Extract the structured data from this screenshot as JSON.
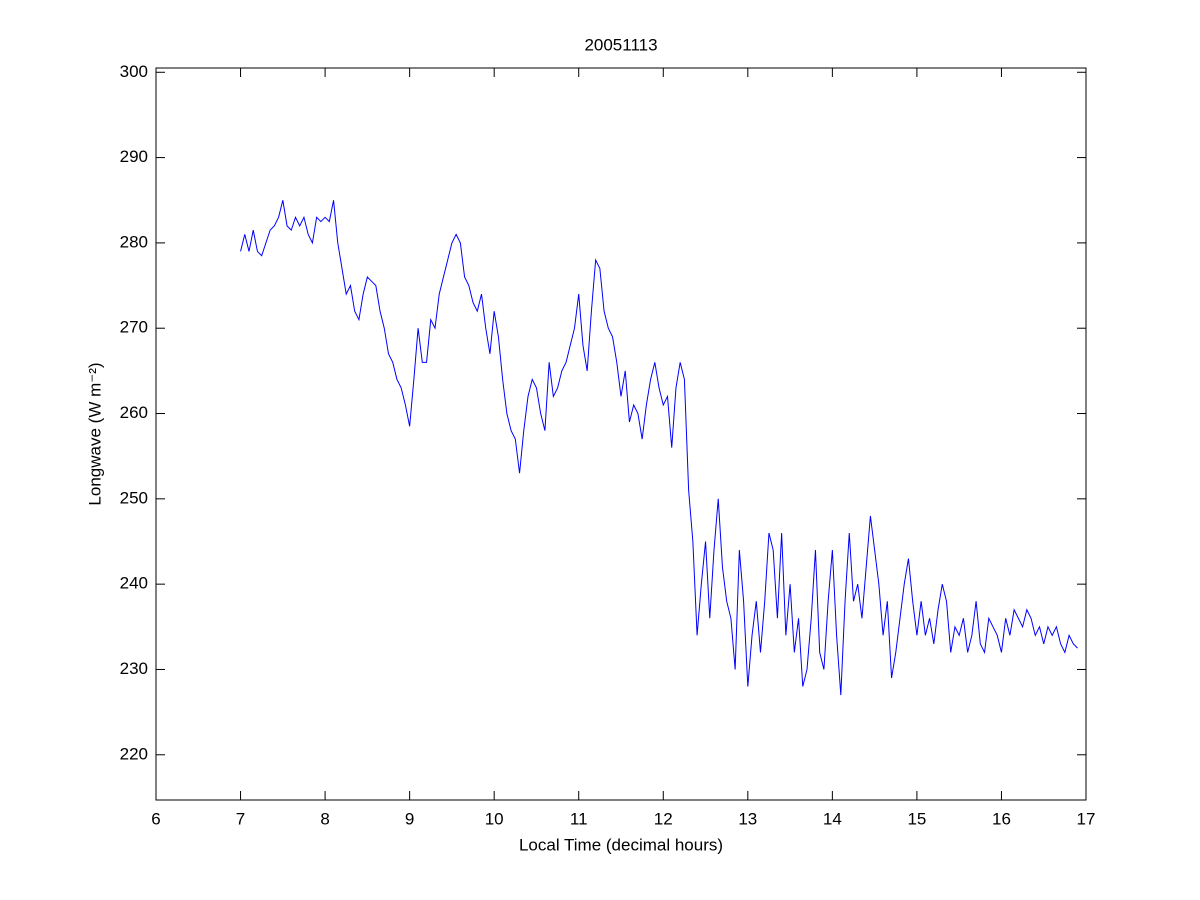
{
  "chart_data": {
    "type": "line",
    "title": "20051113",
    "xlabel": "Local Time (decimal hours)",
    "ylabel": "Longwave (W m⁻²)",
    "x": [
      7.0,
      7.05,
      7.1,
      7.15,
      7.2,
      7.25,
      7.3,
      7.35,
      7.4,
      7.45,
      7.5,
      7.55,
      7.6,
      7.65,
      7.7,
      7.75,
      7.8,
      7.85,
      7.9,
      7.95,
      8.0,
      8.05,
      8.1,
      8.15,
      8.2,
      8.25,
      8.3,
      8.35,
      8.4,
      8.45,
      8.5,
      8.55,
      8.6,
      8.65,
      8.7,
      8.75,
      8.8,
      8.85,
      8.9,
      8.95,
      9.0,
      9.05,
      9.1,
      9.15,
      9.2,
      9.25,
      9.3,
      9.35,
      9.4,
      9.45,
      9.5,
      9.55,
      9.6,
      9.65,
      9.7,
      9.75,
      9.8,
      9.85,
      9.9,
      9.95,
      10.0,
      10.05,
      10.1,
      10.15,
      10.2,
      10.25,
      10.3,
      10.35,
      10.4,
      10.45,
      10.5,
      10.55,
      10.6,
      10.65,
      10.7,
      10.75,
      10.8,
      10.85,
      10.9,
      10.95,
      11.0,
      11.05,
      11.1,
      11.15,
      11.2,
      11.25,
      11.3,
      11.35,
      11.4,
      11.45,
      11.5,
      11.55,
      11.6,
      11.65,
      11.7,
      11.75,
      11.8,
      11.85,
      11.9,
      11.95,
      12.0,
      12.05,
      12.1,
      12.15,
      12.2,
      12.25,
      12.3,
      12.35,
      12.4,
      12.45,
      12.5,
      12.55,
      12.6,
      12.65,
      12.7,
      12.75,
      12.8,
      12.85,
      12.9,
      12.95,
      13.0,
      13.05,
      13.1,
      13.15,
      13.2,
      13.25,
      13.3,
      13.35,
      13.4,
      13.45,
      13.5,
      13.55,
      13.6,
      13.65,
      13.7,
      13.75,
      13.8,
      13.85,
      13.9,
      13.95,
      14.0,
      14.05,
      14.1,
      14.15,
      14.2,
      14.25,
      14.3,
      14.35,
      14.4,
      14.45,
      14.5,
      14.55,
      14.6,
      14.65,
      14.7,
      14.75,
      14.8,
      14.85,
      14.9,
      14.95,
      15.0,
      15.05,
      15.1,
      15.15,
      15.2,
      15.25,
      15.3,
      15.35,
      15.4,
      15.45,
      15.5,
      15.55,
      15.6,
      15.65,
      15.7,
      15.75,
      15.8,
      15.85,
      15.9,
      15.95,
      16.0,
      16.05,
      16.1,
      16.15,
      16.2,
      16.25,
      16.3,
      16.35,
      16.4,
      16.45,
      16.5,
      16.55,
      16.6,
      16.65,
      16.7,
      16.75,
      16.8,
      16.85,
      16.9
    ],
    "series": [
      {
        "color": "#0000ff",
        "values": [
          279,
          281,
          279,
          281.5,
          279,
          278.5,
          280,
          281.5,
          282,
          283,
          285,
          282,
          281.5,
          283,
          282,
          283,
          281,
          280,
          283,
          282.5,
          283,
          282.5,
          285,
          280,
          277,
          274,
          275,
          272,
          271,
          274,
          276,
          275.5,
          275,
          272,
          270,
          267,
          266,
          264,
          263,
          261,
          258.5,
          264,
          270,
          266,
          266,
          271,
          270,
          274,
          276,
          278,
          280,
          281,
          280,
          276,
          275,
          273,
          272,
          274,
          270,
          267,
          272,
          269,
          264,
          260,
          258,
          257,
          253,
          258,
          262,
          264,
          263,
          260,
          258,
          266,
          262,
          263,
          265,
          266,
          268,
          270,
          274,
          268,
          265,
          272,
          278,
          277,
          272,
          270,
          269,
          266,
          262,
          265,
          259,
          261,
          260,
          257,
          261,
          264,
          266,
          263,
          261,
          262,
          256,
          263,
          266,
          264,
          251,
          245,
          234,
          240,
          245,
          236,
          244,
          250,
          242,
          238,
          236,
          230,
          244,
          238,
          228,
          234,
          238,
          232,
          238,
          246,
          244,
          236,
          246,
          234,
          240,
          232,
          236,
          228,
          230,
          236,
          244,
          232,
          230,
          238,
          244,
          234,
          227,
          238,
          246,
          238,
          240,
          236,
          242,
          248,
          244,
          240,
          234,
          238,
          229,
          232,
          236,
          240,
          243,
          238,
          234,
          238,
          234,
          236,
          233,
          237,
          240,
          238,
          232,
          235,
          234,
          236,
          232,
          234,
          238,
          233,
          232,
          236,
          235,
          234,
          232,
          236,
          234,
          237,
          236,
          235,
          237,
          236,
          234,
          235,
          233,
          235,
          234,
          235,
          233,
          232,
          234,
          233,
          232.5
        ]
      }
    ],
    "xlim": [
      6,
      17
    ],
    "xticks": [
      6,
      7,
      8,
      9,
      10,
      11,
      12,
      13,
      14,
      15,
      16,
      17
    ],
    "ylim": [
      214.7,
      300.5
    ],
    "yticks": [
      220,
      230,
      240,
      250,
      260,
      270,
      280,
      290,
      300
    ],
    "grid": false
  }
}
